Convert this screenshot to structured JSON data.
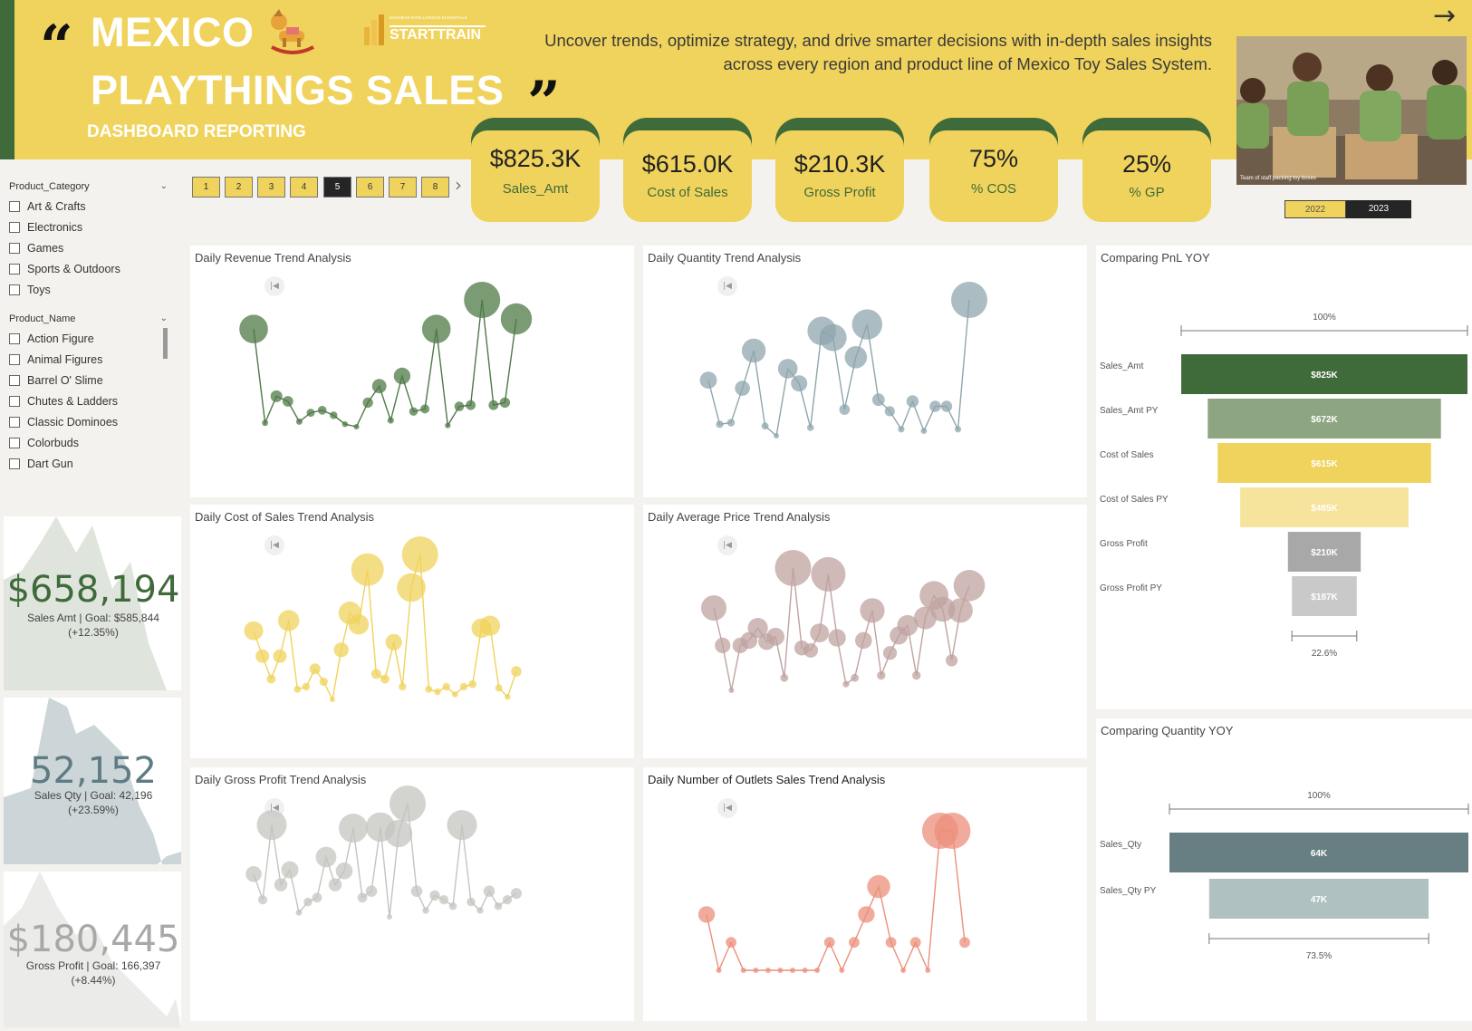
{
  "header": {
    "title_line1": "MEXICO",
    "title_line2": "PLAYTHINGS SALES",
    "subtitle": "DASHBOARD REPORTING",
    "open_quote": "“",
    "close_quote": "”",
    "logo_small": "BUSINESS INTELLIGENCE ESSENTIALS",
    "logo_text": "STARTTRAIN",
    "tagline": "Uncover trends, optimize strategy, and drive smarter decisions with in-depth sales insights across every region and product line of Mexico Toy Sales System.",
    "arrow": "→",
    "photo_caption": "Team of staff packing toy boxes"
  },
  "kpis": [
    {
      "value": "$825.3K",
      "label": "Sales_Amt"
    },
    {
      "value": "$615.0K",
      "label": "Cost of Sales"
    },
    {
      "value": "$210.3K",
      "label": "Gross Profit"
    },
    {
      "value": "75%",
      "label": "% COS"
    },
    {
      "value": "25%",
      "label": "% GP"
    }
  ],
  "pagination": {
    "pages": [
      "1",
      "2",
      "3",
      "4",
      "5",
      "6",
      "7",
      "8"
    ],
    "active": "5",
    "next": "›"
  },
  "years": {
    "y2022": "2022",
    "y2023": "2023",
    "selected": "2023"
  },
  "filters": {
    "category": {
      "title": "Product_Category",
      "items": [
        "Art & Crafts",
        "Electronics",
        "Games",
        "Sports & Outdoors",
        "Toys"
      ]
    },
    "product": {
      "title": "Product_Name",
      "items": [
        "Action Figure",
        "Animal Figures",
        "Barrel O' Slime",
        "Chutes & Ladders",
        "Classic Dominoes",
        "Colorbuds",
        "Dart Gun"
      ]
    }
  },
  "cards": [
    {
      "value": "$658,194",
      "line1": "Sales Amt | Goal: $585,844",
      "line2": "(+12.35%)",
      "color": "#3f6a3a"
    },
    {
      "value": "52,152",
      "line1": "Sales Qty | Goal: 42,196",
      "line2": "(+23.59%)",
      "color": "#5f7c84"
    },
    {
      "value": "$180,445",
      "line1": "Gross Profit | Goal: 166,397",
      "line2": "(+8.44%)",
      "color": "#a8a8a8"
    }
  ],
  "panels": {
    "revenue": "Daily Revenue Trend Analysis",
    "quantity": "Daily Quantity Trend Analysis",
    "cost": "Daily Cost of Sales Trend Analysis",
    "avgprice": "Daily Average Price Trend Analysis",
    "profit": "Daily Gross Profit Trend Analysis",
    "outlets": "Daily Number of Outlets Sales Trend Analysis",
    "pnl": "Comparing PnL YOY",
    "qtyyoy": "Comparing Quantity YOY"
  },
  "chart_data": [
    {
      "type": "scatter",
      "name": "revenue",
      "title": "Daily Revenue Trend Analysis",
      "color": "#4f7a47",
      "y": [
        92,
        18,
        39,
        35,
        19,
        26,
        28,
        24,
        17,
        15,
        34,
        47,
        20,
        55,
        27,
        29,
        92,
        16,
        31,
        32,
        115,
        32,
        34,
        100
      ]
    },
    {
      "type": "scatter",
      "name": "quantity",
      "title": "Daily Quantity Trend Analysis",
      "color": "#8fa6ad",
      "y": [
        48,
        21,
        22,
        43,
        66,
        20,
        14,
        55,
        46,
        19,
        78,
        74,
        30,
        62,
        82,
        36,
        29,
        18,
        35,
        17,
        32,
        32,
        18,
        97
      ]
    },
    {
      "type": "scatter",
      "name": "cost",
      "title": "Daily Cost of Sales Trend Analysis",
      "color": "#f0d35c",
      "y": [
        60,
        40,
        22,
        40,
        68,
        14,
        16,
        30,
        20,
        6,
        45,
        74,
        65,
        108,
        26,
        22,
        51,
        16,
        94,
        120,
        14,
        12,
        16,
        10,
        16,
        18,
        62,
        64,
        15,
        8,
        28
      ]
    },
    {
      "type": "scatter",
      "name": "avgprice",
      "title": "Daily Average Price Trend Analysis",
      "color": "#bfa3a0",
      "y": [
        70,
        40,
        4,
        40,
        44,
        54,
        43,
        47,
        14,
        102,
        38,
        36,
        50,
        97,
        46,
        9,
        14,
        44,
        68,
        16,
        34,
        48,
        56,
        16,
        62,
        80,
        69,
        28,
        68,
        88
      ]
    },
    {
      "type": "scatter",
      "name": "profit",
      "title": "Daily Gross Profit Trend Analysis",
      "color": "#c4c4c0",
      "y": [
        50,
        26,
        96,
        40,
        54,
        14,
        24,
        28,
        66,
        40,
        53,
        93,
        28,
        34,
        94,
        10,
        88,
        116,
        34,
        16,
        30,
        26,
        20,
        96,
        24,
        16,
        34,
        20,
        26,
        32
      ]
    },
    {
      "type": "scatter",
      "name": "outlets",
      "title": "Daily Number of Outlets Sales Trend Analysis",
      "color": "#ec8f7b",
      "y": [
        2,
        0,
        1,
        0,
        0,
        0,
        0,
        0,
        0,
        0,
        1,
        0,
        1,
        2,
        3,
        1,
        0,
        1,
        0,
        5,
        5,
        1
      ]
    },
    {
      "type": "funnel",
      "name": "pnl",
      "title": "Comparing PnL YOY",
      "top_pct_label": "100%",
      "bottom_pct_label": "22.6%",
      "categories": [
        "Sales_Amt",
        "Sales_Amt PY",
        "Cost of Sales",
        "Cost of Sales PY",
        "Gross Profit",
        "Gross Profit PY"
      ],
      "values": [
        825,
        672,
        615,
        485,
        210,
        187
      ],
      "labels": [
        "$825K",
        "$672K",
        "$615K",
        "$485K",
        "$210K",
        "$187K"
      ],
      "colors": [
        "#3f6a3a",
        "#8da580",
        "#f0d35c",
        "#f6e39c",
        "#a8a8a8",
        "#c9c9c9"
      ]
    },
    {
      "type": "funnel",
      "name": "qtyyoy",
      "title": "Comparing Quantity YOY",
      "top_pct_label": "100%",
      "bottom_pct_label": "73.5%",
      "categories": [
        "Sales_Qty",
        "Sales_Qty PY"
      ],
      "values": [
        64,
        47
      ],
      "labels": [
        "64K",
        "47K"
      ],
      "colors": [
        "#677f82",
        "#b0c1c2"
      ]
    }
  ]
}
